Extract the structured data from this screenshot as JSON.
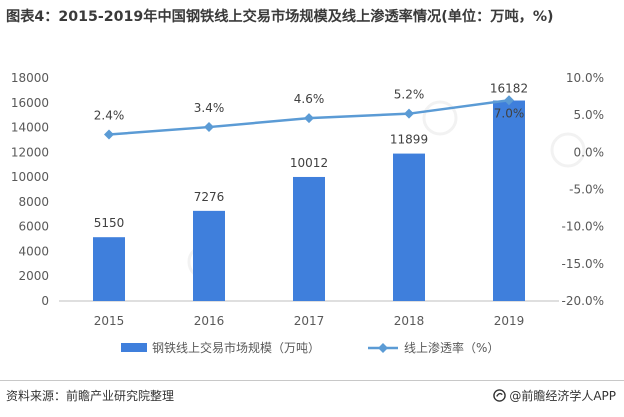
{
  "title": "图表4：2015-2019年中国钢铁线上交易市场规模及线上渗透率情况(单位：万吨，%)",
  "source": "资料来源：前瞻产业研究院整理",
  "brand": "@前瞻经济学人APP",
  "chart_data": {
    "type": "bar",
    "categories": [
      "2015",
      "2016",
      "2017",
      "2018",
      "2019"
    ],
    "series": [
      {
        "name": "钢铁线上交易市场规模（万吨）",
        "type": "bar",
        "axis": "left",
        "color": "#3f7fdc",
        "values": [
          5150,
          7276,
          10012,
          11899,
          16182
        ],
        "labels": [
          "5150",
          "7276",
          "10012",
          "11899",
          "16182"
        ]
      },
      {
        "name": "线上渗透率（%）",
        "type": "line",
        "axis": "right",
        "color": "#5b9bd5",
        "values": [
          2.4,
          3.4,
          4.6,
          5.2,
          7.0
        ],
        "labels": [
          "2.4%",
          "3.4%",
          "4.6%",
          "5.2%",
          "7.0%"
        ]
      }
    ],
    "y_left": {
      "min": 0,
      "max": 18000,
      "step": 2000,
      "ticks": [
        "0",
        "2000",
        "4000",
        "6000",
        "8000",
        "10000",
        "12000",
        "14000",
        "16000",
        "18000"
      ]
    },
    "y_right": {
      "min": -20,
      "max": 10,
      "step": 5,
      "ticks": [
        "-20.0%",
        "-15.0%",
        "-10.0%",
        "-5.0%",
        "0.0%",
        "5.0%",
        "10.0%"
      ]
    },
    "legend_position": "bottom",
    "grid": false
  }
}
